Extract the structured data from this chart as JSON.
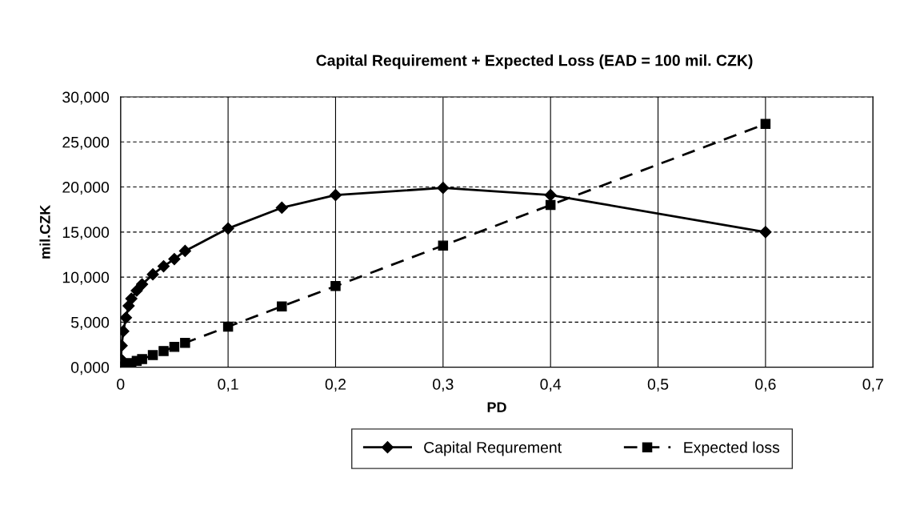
{
  "chart_data": {
    "type": "line",
    "title": "Capital Requirement + Expected Loss (EAD = 100 mil. CZK)",
    "xlabel": "PD",
    "ylabel": "mil.CZK",
    "xlim": [
      0,
      0.7
    ],
    "ylim": [
      0,
      30
    ],
    "xticks": [
      0,
      {
        "value": 0.1,
        "label": "0,1"
      },
      {
        "value": 0.2,
        "label": "0,2"
      },
      {
        "value": 0.3,
        "label": "0,3"
      },
      {
        "value": 0.4,
        "label": "0,4"
      },
      {
        "value": 0.5,
        "label": "0,5"
      },
      {
        "value": 0.6,
        "label": "0,6"
      },
      {
        "value": 0.7,
        "label": "0,7"
      }
    ],
    "yticks": [
      {
        "value": 0,
        "label": "0,000"
      },
      {
        "value": 5,
        "label": "5,000"
      },
      {
        "value": 10,
        "label": "10,000"
      },
      {
        "value": 15,
        "label": "15,000"
      },
      {
        "value": 20,
        "label": "20,000"
      },
      {
        "value": 25,
        "label": "25,000"
      },
      {
        "value": 30,
        "label": "30,000"
      }
    ],
    "grid": true,
    "legend": "bottom",
    "series": [
      {
        "name": "Capital Requrement",
        "color": "#000000",
        "marker": "diamond",
        "line_style": "solid",
        "x": [
          0.0003,
          0.001,
          0.0025,
          0.005,
          0.0075,
          0.01,
          0.015,
          0.02,
          0.03,
          0.04,
          0.05,
          0.06,
          0.1,
          0.15,
          0.2,
          0.3,
          0.4,
          0.6
        ],
        "values": [
          0.9,
          2.4,
          4.0,
          5.5,
          6.8,
          7.6,
          8.5,
          9.2,
          10.3,
          11.2,
          12.0,
          12.9,
          15.4,
          17.7,
          19.1,
          19.9,
          19.1,
          15.0
        ]
      },
      {
        "name": "Expected loss",
        "color": "#000000",
        "marker": "square",
        "line_style": "dashed",
        "x": [
          0.0003,
          0.001,
          0.0025,
          0.005,
          0.0075,
          0.01,
          0.015,
          0.02,
          0.03,
          0.04,
          0.05,
          0.06,
          0.1,
          0.15,
          0.2,
          0.3,
          0.4,
          0.6
        ],
        "values": [
          0.0,
          0.05,
          0.1,
          0.2,
          0.3,
          0.45,
          0.7,
          0.9,
          1.35,
          1.8,
          2.25,
          2.7,
          4.5,
          6.75,
          9.0,
          13.5,
          18.0,
          27.0
        ]
      }
    ]
  }
}
